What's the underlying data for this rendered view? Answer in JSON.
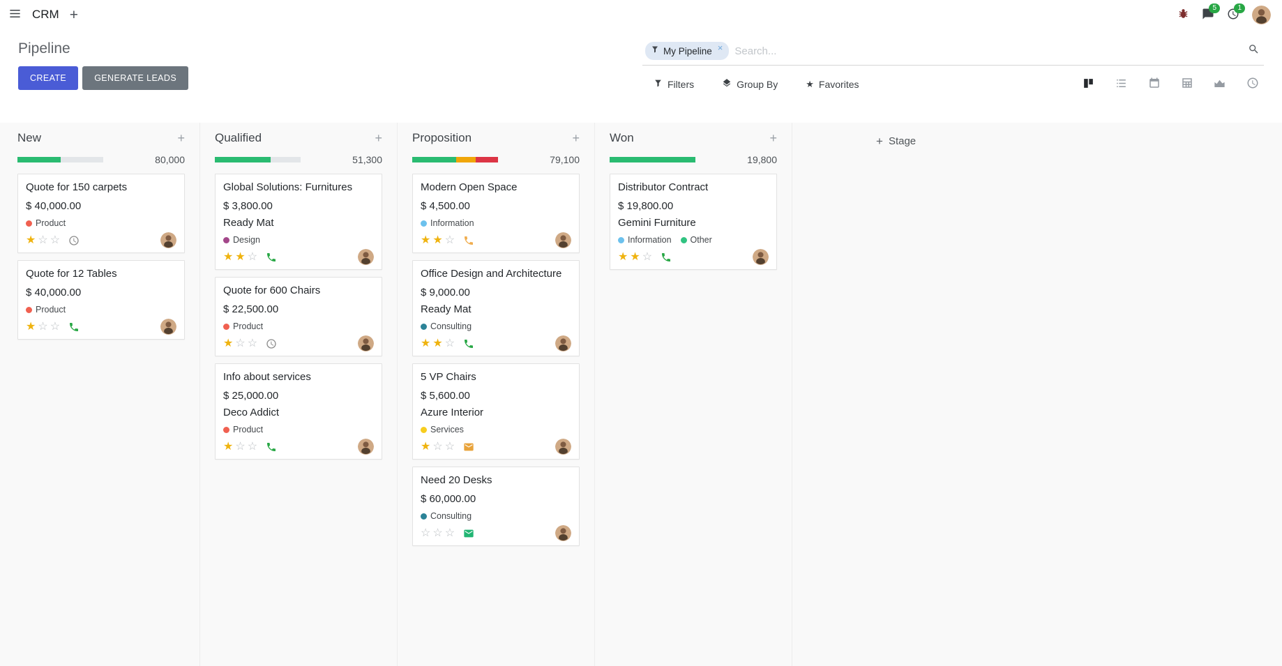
{
  "colors": {
    "primary": "#4a5cd6",
    "secondary": "#6c757d",
    "badge_green": "#28a745",
    "star_gold": "#efb30f",
    "facet_bg": "#dfe8f4",
    "board_bg": "#f9f9f9"
  },
  "glyphs": {
    "plus": "+",
    "close": "×",
    "star": "★"
  },
  "navbar": {
    "app_name": "CRM",
    "message_count": "5",
    "activity_count": "1"
  },
  "control_panel": {
    "title": "Pipeline",
    "create_button": "CREATE",
    "generate_leads_button": "GENERATE LEADS",
    "search": {
      "facet_label": "My Pipeline",
      "placeholder": "Search..."
    },
    "filters_button": "Filters",
    "group_by_button": "Group By",
    "favorites_button": "Favorites"
  },
  "board": {
    "add_stage_label": "Stage",
    "columns": [
      {
        "name": "New",
        "total": "80,000",
        "progress": [
          {
            "color": "#2abb71",
            "pct": 50
          },
          {
            "color": "#e3e6e9",
            "pct": 50
          }
        ],
        "cards": [
          {
            "title": "Quote for 150 carpets",
            "amount": "$ 40,000.00",
            "tags": [
              {
                "label": "Product",
                "color": "#f06050"
              }
            ],
            "stars": 1,
            "activity": {
              "type": "clock",
              "color": "#8a8a8a"
            }
          },
          {
            "title": "Quote for 12 Tables",
            "amount": "$ 40,000.00",
            "tags": [
              {
                "label": "Product",
                "color": "#f06050"
              }
            ],
            "stars": 1,
            "activity": {
              "type": "phone",
              "color": "#28a745"
            }
          }
        ]
      },
      {
        "name": "Qualified",
        "total": "51,300",
        "progress": [
          {
            "color": "#2abb71",
            "pct": 65
          },
          {
            "color": "#e3e6e9",
            "pct": 35
          }
        ],
        "cards": [
          {
            "title": "Global Solutions: Furnitures",
            "amount": "$ 3,800.00",
            "partner": "Ready Mat",
            "tags": [
              {
                "label": "Design",
                "color": "#a3478a"
              }
            ],
            "stars": 2,
            "activity": {
              "type": "phone",
              "color": "#28a745"
            }
          },
          {
            "title": "Quote for 600 Chairs",
            "amount": "$ 22,500.00",
            "tags": [
              {
                "label": "Product",
                "color": "#f06050"
              }
            ],
            "stars": 1,
            "activity": {
              "type": "clock",
              "color": "#8a8a8a"
            }
          },
          {
            "title": "Info about services",
            "amount": "$ 25,000.00",
            "partner": "Deco Addict",
            "tags": [
              {
                "label": "Product",
                "color": "#f06050"
              }
            ],
            "stars": 1,
            "activity": {
              "type": "phone",
              "color": "#28a745"
            }
          }
        ]
      },
      {
        "name": "Proposition",
        "total": "79,100",
        "progress": [
          {
            "color": "#2abb71",
            "pct": 51
          },
          {
            "color": "#f0a609",
            "pct": 23
          },
          {
            "color": "#dc3545",
            "pct": 26
          }
        ],
        "cards": [
          {
            "title": "Modern Open Space",
            "amount": "$ 4,500.00",
            "tags": [
              {
                "label": "Information",
                "color": "#6cc1ed"
              }
            ],
            "stars": 2,
            "activity": {
              "type": "phone",
              "color": "#f0ad4e"
            }
          },
          {
            "title": "Office Design and Architecture",
            "amount": "$ 9,000.00",
            "partner": "Ready Mat",
            "tags": [
              {
                "label": "Consulting",
                "color": "#2c8397"
              }
            ],
            "stars": 2,
            "activity": {
              "type": "phone",
              "color": "#28a745"
            }
          },
          {
            "title": "5 VP Chairs",
            "amount": "$ 5,600.00",
            "partner": "Azure Interior",
            "tags": [
              {
                "label": "Services",
                "color": "#f7cd1f"
              }
            ],
            "stars": 1,
            "activity": {
              "type": "mail",
              "color": "#e8a33b"
            }
          },
          {
            "title": "Need 20 Desks",
            "amount": "$ 60,000.00",
            "tags": [
              {
                "label": "Consulting",
                "color": "#2c8397"
              }
            ],
            "stars": 0,
            "activity": {
              "type": "mail",
              "color": "#21b573"
            }
          }
        ]
      },
      {
        "name": "Won",
        "total": "19,800",
        "progress": [
          {
            "color": "#2abb71",
            "pct": 100
          }
        ],
        "cards": [
          {
            "title": "Distributor Contract",
            "amount": "$ 19,800.00",
            "partner": "Gemini Furniture",
            "tags": [
              {
                "label": "Information",
                "color": "#6cc1ed"
              },
              {
                "label": "Other",
                "color": "#30c381"
              }
            ],
            "stars": 2,
            "activity": {
              "type": "phone",
              "color": "#28a745"
            }
          }
        ]
      }
    ]
  }
}
